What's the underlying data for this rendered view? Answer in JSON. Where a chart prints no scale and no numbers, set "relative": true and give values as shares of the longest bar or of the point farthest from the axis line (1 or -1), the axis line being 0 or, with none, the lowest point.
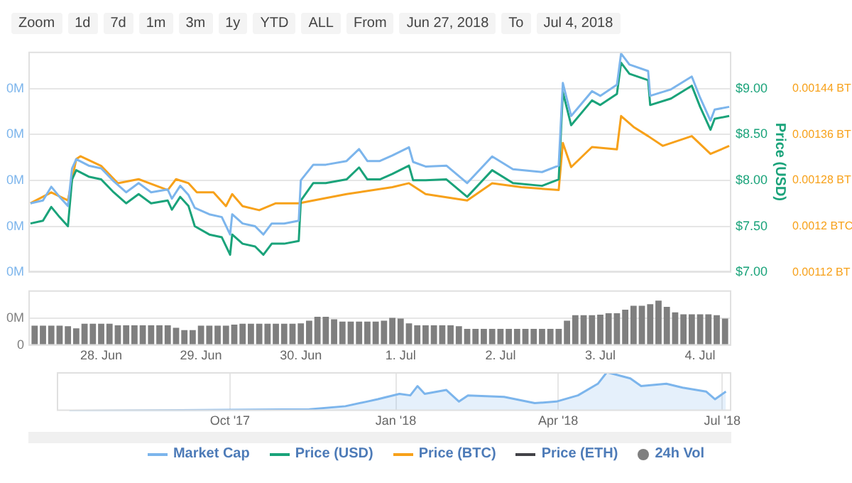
{
  "chart_data": [
    {
      "type": "line",
      "ylabel": "Price (USD)",
      "annotations": [
        "Zoom",
        "1d",
        "7d",
        "1m",
        "3m",
        "1y",
        "YTD",
        "ALL",
        "From",
        "Jun 27, 2018",
        "To",
        "Jul 4, 2018"
      ],
      "xlim": [
        "2018-06-27T06:30",
        "2018-07-04T07:30"
      ],
      "ylim": [
        7,
        9.4
      ],
      "yticks": [
        {
          "value": 7,
          "label": "$7.00"
        },
        {
          "value": 7.5,
          "label": "$7.50"
        },
        {
          "value": 8,
          "label": "$8.00"
        },
        {
          "value": 8.5,
          "label": "$8.50"
        },
        {
          "value": 9,
          "label": "$9.00"
        }
      ],
      "y2lim": [
        0.00112,
        0.001504
      ],
      "y2ticks": [
        {
          "value": 0.00112,
          "label": "0.00112 BT"
        },
        {
          "value": 0.0012,
          "label": "0.0012 BTC"
        },
        {
          "value": 0.00128,
          "label": "0.00128 BT"
        },
        {
          "value": 0.00136,
          "label": "0.00136 BT"
        },
        {
          "value": 0.00144,
          "label": "0.00144 BT"
        }
      ],
      "y3lim": [
        0,
        2.4
      ],
      "y3ticks": [
        {
          "value": 0,
          "label": "0M"
        },
        {
          "value": 0.5,
          "label": "0M"
        },
        {
          "value": 1,
          "label": "0M"
        },
        {
          "value": 1.5,
          "label": "0M"
        },
        {
          "value": 2,
          "label": "0M"
        }
      ],
      "grid": "y",
      "legend": "bottom",
      "tick_labels": "y",
      "marker": "none",
      "line_style": "solid",
      "series": [
        {
          "name": "Market Cap",
          "color": "#7cb5ec",
          "axis": "y3",
          "x": [
            "2018-06-27T07:00",
            "2018-06-27T10:00",
            "2018-06-27T12:00",
            "2018-06-27T14:00",
            "2018-06-27T16:00",
            "2018-06-27T17:00",
            "2018-06-27T18:00",
            "2018-06-27T21:00",
            "2018-06-28T00:00",
            "2018-06-28T03:00",
            "2018-06-28T06:00",
            "2018-06-28T09:00",
            "2018-06-28T12:00",
            "2018-06-28T16:00",
            "2018-06-28T17:00",
            "2018-06-28T19:00",
            "2018-06-28T21:00",
            "2018-06-28T22:30",
            "2018-06-29T02:00",
            "2018-06-29T05:00",
            "2018-06-29T07:00",
            "2018-06-29T07:30",
            "2018-06-29T10:00",
            "2018-06-29T13:00",
            "2018-06-29T15:00",
            "2018-06-29T17:00",
            "2018-06-29T20:00",
            "2018-06-29T23:30",
            "2018-06-30T00:00",
            "2018-06-30T03:00",
            "2018-06-30T06:00",
            "2018-06-30T11:00",
            "2018-06-30T14:00",
            "2018-06-30T16:00",
            "2018-06-30T19:00",
            "2018-06-30T22:00",
            "2018-07-01T02:00",
            "2018-07-01T03:00",
            "2018-07-01T06:00",
            "2018-07-01T11:00",
            "2018-07-01T16:00",
            "2018-07-01T22:00",
            "2018-07-02T03:00",
            "2018-07-02T10:00",
            "2018-07-02T14:00",
            "2018-07-02T15:00",
            "2018-07-02T17:00",
            "2018-07-02T22:00",
            "2018-07-03T00:00",
            "2018-07-03T04:00",
            "2018-07-03T05:00",
            "2018-07-03T07:00",
            "2018-07-03T11:30",
            "2018-07-03T12:00",
            "2018-07-03T17:00",
            "2018-07-03T22:00",
            "2018-07-04T00:00",
            "2018-07-04T02:30",
            "2018-07-04T03:30",
            "2018-07-04T07:00"
          ],
          "values": [
            0.75,
            0.78,
            0.93,
            0.82,
            0.72,
            1.13,
            1.23,
            1.16,
            1.13,
            0.99,
            0.87,
            0.97,
            0.87,
            0.9,
            0.8,
            0.94,
            0.84,
            0.7,
            0.63,
            0.6,
            0.41,
            0.63,
            0.53,
            0.5,
            0.41,
            0.53,
            0.53,
            0.56,
            1.0,
            1.17,
            1.17,
            1.21,
            1.34,
            1.21,
            1.21,
            1.27,
            1.36,
            1.2,
            1.15,
            1.16,
            0.97,
            1.26,
            1.12,
            1.09,
            1.16,
            2.06,
            1.7,
            1.97,
            1.92,
            2.04,
            2.38,
            2.26,
            2.19,
            1.92,
            1.99,
            2.13,
            1.9,
            1.65,
            1.77,
            1.8
          ]
        },
        {
          "name": "Price (USD)",
          "color": "#1aa37a",
          "x": [
            "2018-06-27T07:00",
            "2018-06-27T10:00",
            "2018-06-27T12:00",
            "2018-06-27T14:00",
            "2018-06-27T16:00",
            "2018-06-27T17:00",
            "2018-06-27T18:00",
            "2018-06-27T21:00",
            "2018-06-28T00:00",
            "2018-06-28T03:00",
            "2018-06-28T06:00",
            "2018-06-28T09:00",
            "2018-06-28T12:00",
            "2018-06-28T16:00",
            "2018-06-28T17:00",
            "2018-06-28T19:00",
            "2018-06-28T21:00",
            "2018-06-28T22:30",
            "2018-06-29T02:00",
            "2018-06-29T05:00",
            "2018-06-29T07:00",
            "2018-06-29T07:30",
            "2018-06-29T10:00",
            "2018-06-29T13:00",
            "2018-06-29T15:00",
            "2018-06-29T17:00",
            "2018-06-29T20:00",
            "2018-06-29T23:30",
            "2018-06-30T00:00",
            "2018-06-30T03:00",
            "2018-06-30T06:00",
            "2018-06-30T11:00",
            "2018-06-30T14:00",
            "2018-06-30T16:00",
            "2018-06-30T19:00",
            "2018-06-30T22:00",
            "2018-07-01T02:00",
            "2018-07-01T03:00",
            "2018-07-01T06:00",
            "2018-07-01T11:00",
            "2018-07-01T16:00",
            "2018-07-01T22:00",
            "2018-07-02T03:00",
            "2018-07-02T10:00",
            "2018-07-02T14:00",
            "2018-07-02T15:00",
            "2018-07-02T17:00",
            "2018-07-02T22:00",
            "2018-07-03T00:00",
            "2018-07-03T04:00",
            "2018-07-03T05:00",
            "2018-07-03T07:00",
            "2018-07-03T11:30",
            "2018-07-03T12:00",
            "2018-07-03T17:00",
            "2018-07-03T22:00",
            "2018-07-04T00:00",
            "2018-07-04T02:30",
            "2018-07-04T03:30",
            "2018-07-04T07:00"
          ],
          "values": [
            7.53,
            7.56,
            7.71,
            7.6,
            7.5,
            8.01,
            8.11,
            8.04,
            8.01,
            7.87,
            7.75,
            7.85,
            7.75,
            7.78,
            7.68,
            7.82,
            7.72,
            7.5,
            7.41,
            7.38,
            7.19,
            7.41,
            7.31,
            7.28,
            7.19,
            7.31,
            7.31,
            7.34,
            7.78,
            7.97,
            7.97,
            8.01,
            8.14,
            8.01,
            8.01,
            8.07,
            8.16,
            8.0,
            8.0,
            8.01,
            7.82,
            8.11,
            7.97,
            7.94,
            8.01,
            8.96,
            8.6,
            8.87,
            8.82,
            8.94,
            9.28,
            9.16,
            9.09,
            8.82,
            8.89,
            9.03,
            8.8,
            8.55,
            8.67,
            8.7
          ]
        },
        {
          "name": "Price (BTC)",
          "color": "#f7a11a",
          "axis": "y2",
          "x": [
            "2018-06-27T07:00",
            "2018-06-27T12:00",
            "2018-06-27T16:00",
            "2018-06-27T18:00",
            "2018-06-27T19:00",
            "2018-06-28T00:00",
            "2018-06-28T04:00",
            "2018-06-28T09:00",
            "2018-06-28T16:00",
            "2018-06-28T18:00",
            "2018-06-28T21:00",
            "2018-06-28T23:00",
            "2018-06-29T03:00",
            "2018-06-29T06:00",
            "2018-06-29T07:30",
            "2018-06-29T10:00",
            "2018-06-29T14:00",
            "2018-06-29T18:00",
            "2018-06-29T23:30",
            "2018-06-30T03:00",
            "2018-06-30T11:00",
            "2018-06-30T22:00",
            "2018-07-01T02:00",
            "2018-07-01T06:00",
            "2018-07-01T16:00",
            "2018-07-01T22:00",
            "2018-07-02T05:00",
            "2018-07-02T14:00",
            "2018-07-02T15:00",
            "2018-07-02T17:00",
            "2018-07-02T22:00",
            "2018-07-03T04:00",
            "2018-07-03T05:00",
            "2018-07-03T08:00",
            "2018-07-03T11:30",
            "2018-07-03T15:00",
            "2018-07-03T22:00",
            "2018-07-04T02:30",
            "2018-07-04T07:00"
          ],
          "values": [
            0.00124,
            0.001259,
            0.001245,
            0.001317,
            0.001322,
            0.001305,
            0.001275,
            0.001282,
            0.001263,
            0.001282,
            0.001275,
            0.001259,
            0.001259,
            0.001235,
            0.001256,
            0.001235,
            0.001228,
            0.00124,
            0.00124,
            0.001245,
            0.001256,
            0.001268,
            0.001275,
            0.001256,
            0.001245,
            0.001275,
            0.001268,
            0.001263,
            0.001345,
            0.001303,
            0.001338,
            0.001334,
            0.001392,
            0.001373,
            0.001357,
            0.00134,
            0.001357,
            0.001326,
            0.00134
          ]
        },
        {
          "name": "Price (ETH)",
          "color": "#434348"
        }
      ]
    },
    {
      "type": "bar",
      "xlim": [
        "2018-06-27T06:30",
        "2018-07-04T07:30"
      ],
      "xticks": [
        {
          "value": "2018-06-28",
          "label": "28. Jun"
        },
        {
          "value": "2018-06-29",
          "label": "29. Jun"
        },
        {
          "value": "2018-06-30",
          "label": "30. Jun"
        },
        {
          "value": "2018-07-01",
          "label": "1. Jul"
        },
        {
          "value": "2018-07-02",
          "label": "2. Jul"
        },
        {
          "value": "2018-07-03",
          "label": "3. Jul"
        },
        {
          "value": "2018-07-04",
          "label": "4. Jul"
        }
      ],
      "ylim": [
        0,
        2
      ],
      "yticks": [
        0,
        {
          "value": 1,
          "label": "0M"
        }
      ],
      "grid": "y",
      "legend": "bottom",
      "series": [
        {
          "name": "24h Vol",
          "color": "#7f7f7f",
          "x": [
            "2018-06-27T08:00",
            "2018-06-27T10:00",
            "2018-06-27T12:00",
            "2018-06-27T14:00",
            "2018-06-27T16:00",
            "2018-06-27T18:00",
            "2018-06-27T20:00",
            "2018-06-27T22:00",
            "2018-06-28T00:00",
            "2018-06-28T02:00",
            "2018-06-28T04:00",
            "2018-06-28T06:00",
            "2018-06-28T08:00",
            "2018-06-28T10:00",
            "2018-06-28T12:00",
            "2018-06-28T14:00",
            "2018-06-28T16:00",
            "2018-06-28T18:00",
            "2018-06-28T20:00",
            "2018-06-28T22:00",
            "2018-06-29T00:00",
            "2018-06-29T02:00",
            "2018-06-29T04:00",
            "2018-06-29T06:00",
            "2018-06-29T08:00",
            "2018-06-29T10:00",
            "2018-06-29T12:00",
            "2018-06-29T14:00",
            "2018-06-29T16:00",
            "2018-06-29T18:00",
            "2018-06-29T20:00",
            "2018-06-29T22:00",
            "2018-06-30T00:00",
            "2018-06-30T02:00",
            "2018-06-30T04:00",
            "2018-06-30T06:00",
            "2018-06-30T08:00",
            "2018-06-30T10:00",
            "2018-06-30T12:00",
            "2018-06-30T14:00",
            "2018-06-30T16:00",
            "2018-06-30T18:00",
            "2018-06-30T20:00",
            "2018-06-30T22:00",
            "2018-07-01T00:00",
            "2018-07-01T02:00",
            "2018-07-01T04:00",
            "2018-07-01T06:00",
            "2018-07-01T08:00",
            "2018-07-01T10:00",
            "2018-07-01T12:00",
            "2018-07-01T14:00",
            "2018-07-01T16:00",
            "2018-07-01T18:00",
            "2018-07-01T20:00",
            "2018-07-01T22:00",
            "2018-07-02T00:00",
            "2018-07-02T02:00",
            "2018-07-02T04:00",
            "2018-07-02T06:00",
            "2018-07-02T08:00",
            "2018-07-02T10:00",
            "2018-07-02T12:00",
            "2018-07-02T14:00",
            "2018-07-02T16:00",
            "2018-07-02T18:00",
            "2018-07-02T20:00",
            "2018-07-02T22:00",
            "2018-07-03T00:00",
            "2018-07-03T02:00",
            "2018-07-03T04:00",
            "2018-07-03T06:00",
            "2018-07-03T08:00",
            "2018-07-03T10:00",
            "2018-07-03T12:00",
            "2018-07-03T14:00",
            "2018-07-03T16:00",
            "2018-07-03T18:00",
            "2018-07-03T20:00",
            "2018-07-03T22:00",
            "2018-07-04T00:00",
            "2018-07-04T02:00",
            "2018-07-04T04:00",
            "2018-07-04T06:00"
          ],
          "values": [
            0.72,
            0.72,
            0.72,
            0.72,
            0.7,
            0.62,
            0.79,
            0.79,
            0.79,
            0.79,
            0.73,
            0.73,
            0.73,
            0.73,
            0.73,
            0.73,
            0.73,
            0.64,
            0.56,
            0.56,
            0.72,
            0.72,
            0.72,
            0.72,
            0.76,
            0.79,
            0.79,
            0.79,
            0.79,
            0.79,
            0.79,
            0.79,
            0.8,
            0.9,
            1.04,
            1.04,
            0.95,
            0.87,
            0.87,
            0.87,
            0.87,
            0.87,
            0.9,
            1.0,
            0.98,
            0.8,
            0.73,
            0.73,
            0.73,
            0.73,
            0.73,
            0.7,
            0.6,
            0.6,
            0.6,
            0.6,
            0.6,
            0.6,
            0.6,
            0.6,
            0.6,
            0.6,
            0.6,
            0.6,
            0.9,
            1.1,
            1.1,
            1.1,
            1.12,
            1.17,
            1.17,
            1.3,
            1.44,
            1.44,
            1.5,
            1.63,
            1.4,
            1.2,
            1.13,
            1.13,
            1.13,
            1.13,
            1.1,
            0.98
          ]
        }
      ]
    },
    {
      "type": "area",
      "relative": true,
      "legend": false,
      "grid": "x",
      "tick_labels": "x",
      "xlim": [
        "2017-06-27",
        "2018-07-06"
      ],
      "xticks": [
        {
          "value": "2017-10-01",
          "label": "Oct '17"
        },
        {
          "value": "2018-01-01",
          "label": "Jan '18"
        },
        {
          "value": "2018-04-01",
          "label": "Apr '18"
        },
        {
          "value": "2018-07-01",
          "label": "Jul '18"
        }
      ],
      "series": [
        {
          "color": "#7cb5ec",
          "x": [
            "2017-07-04",
            "2017-11-14",
            "2017-12-04",
            "2017-12-16",
            "2017-12-22",
            "2018-01-03",
            "2018-01-09",
            "2018-01-13",
            "2018-01-17",
            "2018-01-29",
            "2018-02-05",
            "2018-02-10",
            "2018-03-02",
            "2018-03-19",
            "2018-03-31",
            "2018-04-12",
            "2018-04-23",
            "2018-04-28",
            "2018-05-11",
            "2018-05-17",
            "2018-05-31",
            "2018-06-09",
            "2018-06-22",
            "2018-06-27",
            "2018-07-03"
          ],
          "values": [
            0,
            0.04,
            0.12,
            0.24,
            0.3,
            0.44,
            0.4,
            0.64,
            0.44,
            0.54,
            0.24,
            0.4,
            0.36,
            0.2,
            0.24,
            0.4,
            0.7,
            1,
            0.84,
            0.64,
            0.7,
            0.6,
            0.5,
            0.3,
            0.5
          ]
        }
      ]
    }
  ]
}
